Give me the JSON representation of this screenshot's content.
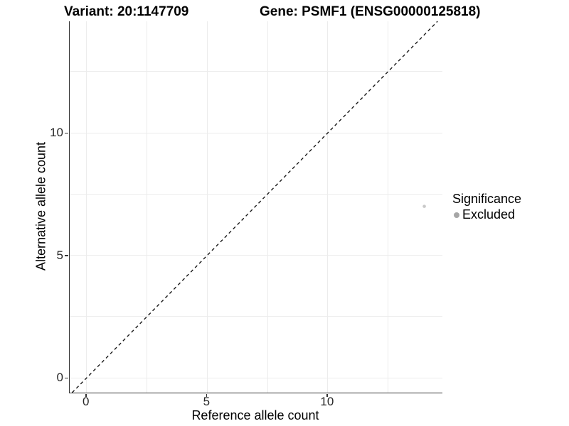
{
  "header": {
    "title_left": "Variant: 20:1147709",
    "title_right": "Gene: PSMF1 (ENSG00000125818)"
  },
  "chart_data": {
    "type": "scatter",
    "title": "Variant: 20:1147709   Gene: PSMF1 (ENSG00000125818)",
    "xlabel": "Reference allele count",
    "ylabel": "Alternative allele count",
    "xlim": [
      -0.7,
      14.75
    ],
    "ylim": [
      -0.6,
      14.55
    ],
    "xticks": [
      0,
      5,
      10
    ],
    "yticks": [
      0,
      5,
      10
    ],
    "x_gridlines": [
      0,
      2.5,
      5,
      7.5,
      10,
      12.5
    ],
    "y_gridlines": [
      0,
      2.5,
      5,
      7.5,
      10,
      12.5
    ],
    "grid": true,
    "identity_line": {
      "style": "dashed",
      "from": -0.6,
      "to": 14.55,
      "color": "#1a1a1a"
    },
    "series": [
      {
        "name": "Excluded",
        "color": "#c9c9c9",
        "points": [
          {
            "x": 14,
            "y": 7
          }
        ]
      }
    ],
    "legend": {
      "title": "Significance",
      "position": "right",
      "entries": [
        {
          "label": "Excluded",
          "color": "#a6a6a6"
        }
      ]
    }
  },
  "colors": {
    "background": "#ffffff",
    "gridline": "#ececec",
    "axis_line": "#333333",
    "tick_label": "#262626",
    "point_excluded": "#c9c9c9",
    "legend_key": "#a6a6a6"
  }
}
